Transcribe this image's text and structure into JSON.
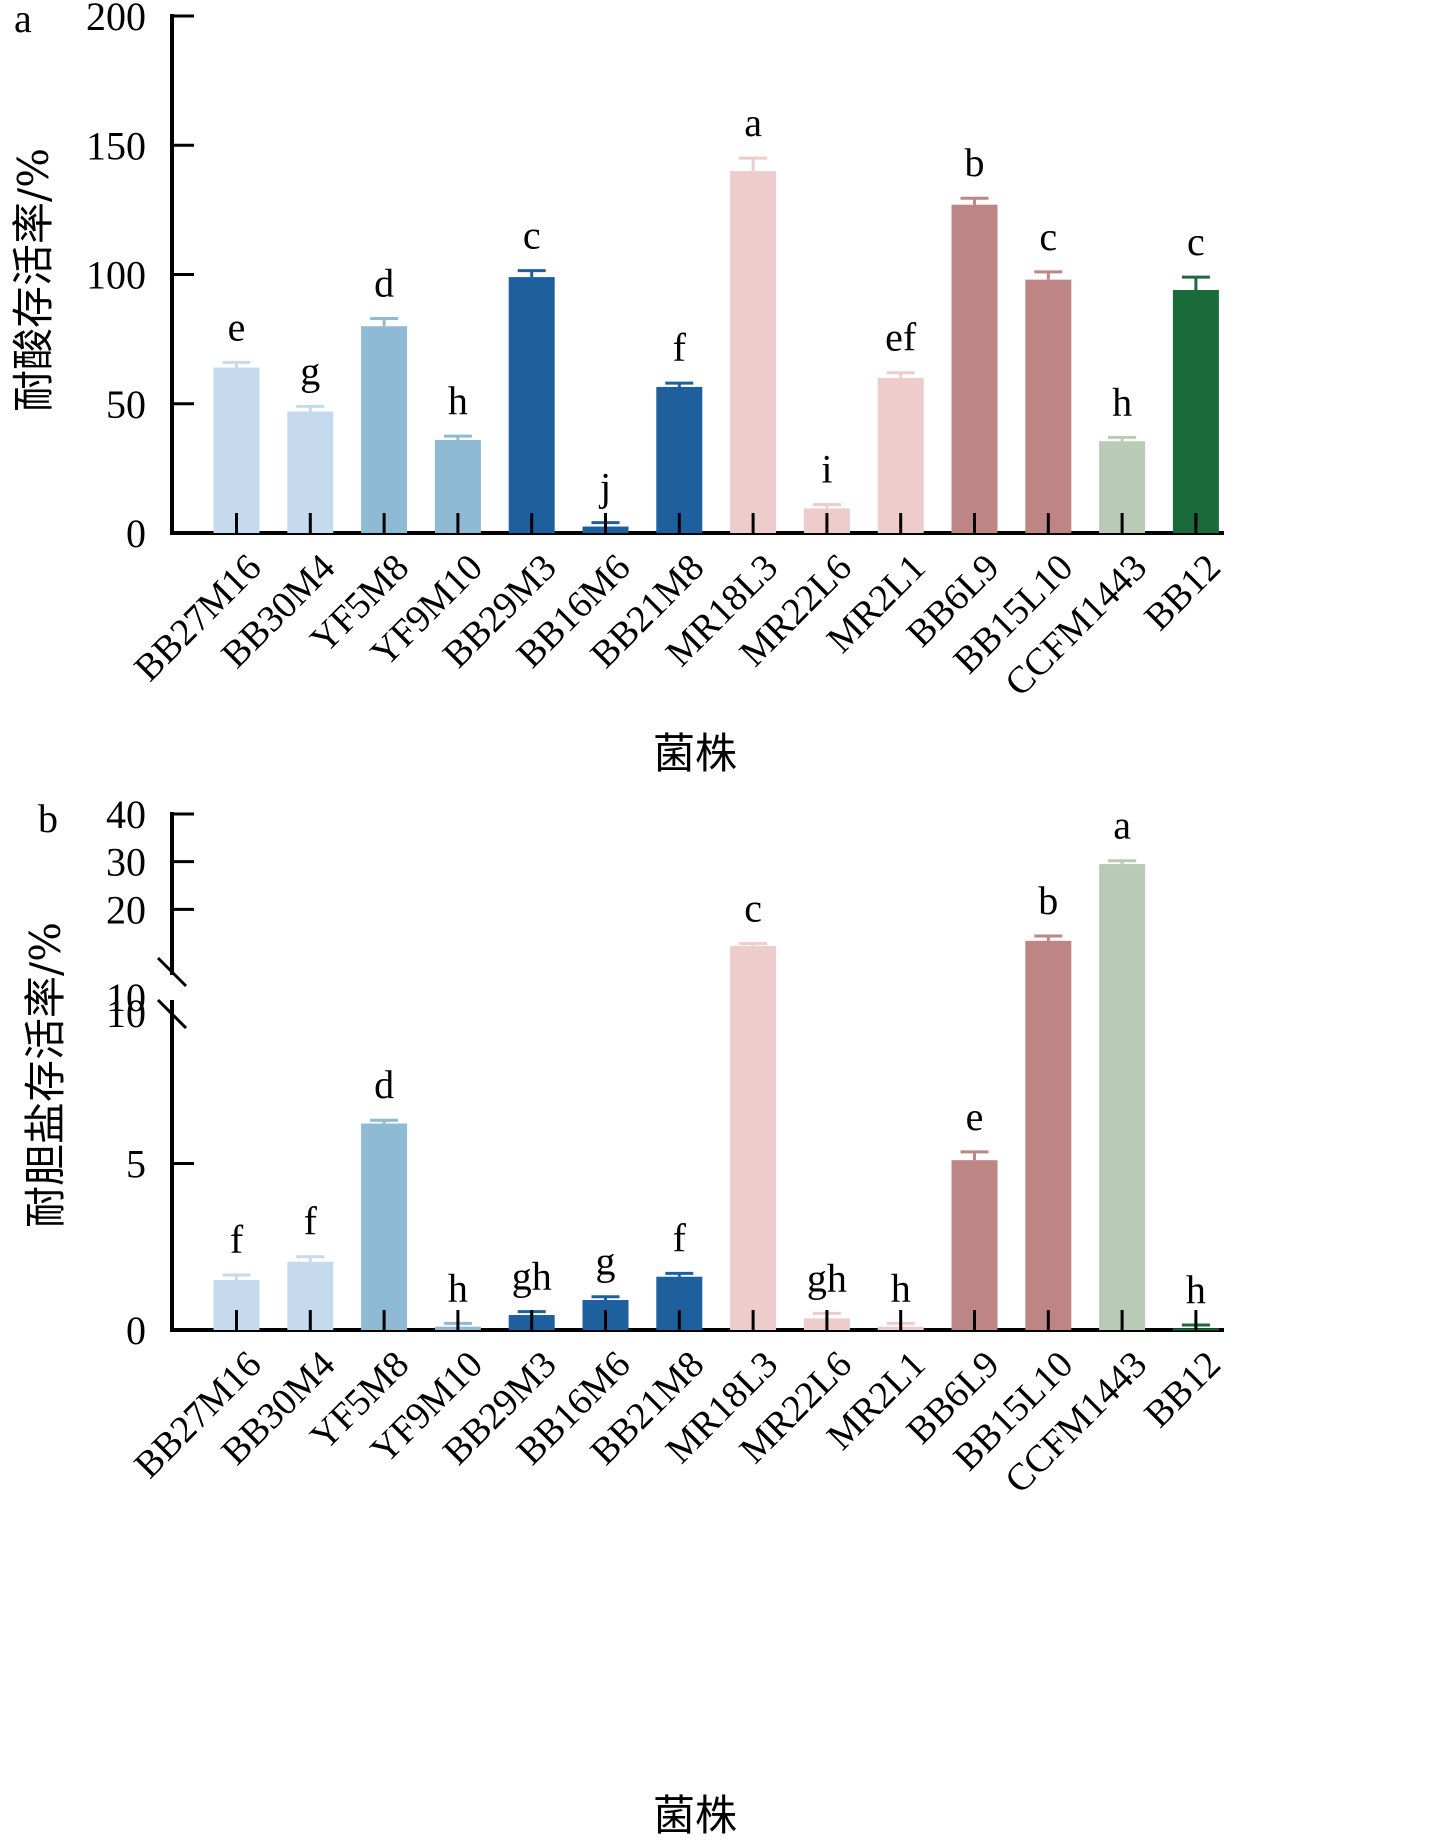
{
  "chart_data": [
    {
      "type": "bar",
      "panel": "a",
      "title": "",
      "xlabel": "菌株",
      "ylabel": "耐酸存活率/%",
      "ylim": [
        0,
        200
      ],
      "yticks": [
        0,
        50,
        100,
        150,
        200
      ],
      "grid": false,
      "legend": "none",
      "categories": [
        "BB27M16",
        "BB30M4",
        "YF5M8",
        "YF9M10",
        "BB29M3",
        "BB16M6",
        "BB21M8",
        "MR18L3",
        "MR22L6",
        "MR2L1",
        "BB6L9",
        "BB15L10",
        "CCFM1443",
        "BB12"
      ],
      "values": [
        64,
        47,
        80,
        36,
        99,
        2.5,
        56.5,
        140,
        9.5,
        60,
        127,
        98,
        35.5,
        94
      ],
      "errors": [
        2,
        2,
        3,
        1.5,
        2.5,
        1.5,
        1.5,
        5,
        1.5,
        2,
        2.5,
        3,
        1.5,
        5
      ],
      "significance": [
        "e",
        "g",
        "d",
        "h",
        "c",
        "j",
        "f",
        "a",
        "i",
        "ef",
        "b",
        "c",
        "h",
        "c"
      ],
      "colors": [
        "#c5d9ef",
        "#c5d9ef",
        "#8fbad3",
        "#8fbad3",
        "#1e5f9e",
        "#1e5f9e",
        "#1e5f9e",
        "#eecccc",
        "#eecccc",
        "#eecccc",
        "#be8585",
        "#be8585",
        "#b9cbb4",
        "#1b6a3a"
      ]
    },
    {
      "type": "bar",
      "panel": "b",
      "title": "",
      "xlabel": "菌株",
      "ylabel": "耐胆盐存活率/%",
      "ylim": [
        0,
        40
      ],
      "axis_break": {
        "lower": [
          0,
          10
        ],
        "upper": [
          10,
          40
        ]
      },
      "yticks_lower": [
        0,
        5,
        10
      ],
      "yticks_upper": [
        10,
        20,
        30,
        40
      ],
      "grid": false,
      "legend": "none",
      "categories": [
        "BB27M16",
        "BB30M4",
        "YF5M8",
        "YF9M10",
        "BB29M3",
        "BB16M6",
        "BB21M8",
        "MR18L3",
        "MR22L6",
        "MR2L1",
        "BB6L9",
        "BB15L10",
        "CCFM1443",
        "BB12"
      ],
      "values": [
        1.5,
        2.05,
        6.2,
        0.1,
        0.45,
        0.9,
        1.6,
        12.3,
        0.35,
        0.1,
        5.1,
        13.4,
        29.5,
        0.05
      ],
      "errors": [
        0.15,
        0.15,
        0.1,
        0.1,
        0.1,
        0.1,
        0.1,
        0.5,
        0.15,
        0.1,
        0.25,
        1,
        0.7,
        0.1
      ],
      "significance": [
        "f",
        "f",
        "d",
        "h",
        "gh",
        "g",
        "f",
        "c",
        "gh",
        "h",
        "e",
        "b",
        "a",
        "h"
      ],
      "colors": [
        "#c5d9ef",
        "#c5d9ef",
        "#8fbad3",
        "#8fbad3",
        "#1e5f9e",
        "#1e5f9e",
        "#1e5f9e",
        "#eecccc",
        "#eecccc",
        "#eecccc",
        "#be8585",
        "#be8585",
        "#b9cbb4",
        "#1b6a3a"
      ]
    }
  ]
}
